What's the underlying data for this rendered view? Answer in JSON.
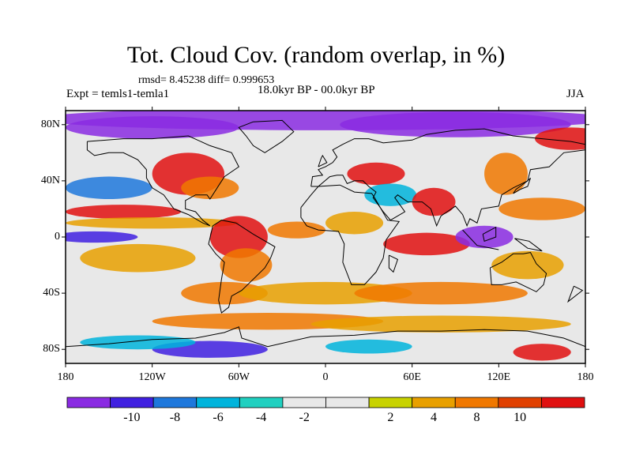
{
  "title": "Tot. Cloud Cov. (random overlap, in %)",
  "stats": "rmsd= 8.45238 diff= 0.999653",
  "experiment": "Expt = temls1-temla1",
  "period": "18.0kyr BP - 00.0kyr BP",
  "season": "JJA",
  "map": {
    "projection": "cylindrical equidistant",
    "lon_range": [
      -180,
      180
    ],
    "lat_range": [
      -90,
      90
    ],
    "lat_ticks": [
      {
        "label": "80N",
        "lat": 80
      },
      {
        "label": "40N",
        "lat": 40
      },
      {
        "label": "0",
        "lat": 0
      },
      {
        "label": "40S",
        "lat": -40
      },
      {
        "label": "80S",
        "lat": -80
      }
    ],
    "lon_ticks": [
      {
        "label": "180",
        "lon": -180
      },
      {
        "label": "120W",
        "lon": -120
      },
      {
        "label": "60W",
        "lon": -60
      },
      {
        "label": "0",
        "lon": 0
      },
      {
        "label": "60E",
        "lon": 60
      },
      {
        "label": "120E",
        "lon": 120
      },
      {
        "label": "180",
        "lon": 180
      }
    ],
    "field_notes": "total cloud cover difference, LGM minus present"
  },
  "colorbar": {
    "colors": [
      "#8a2be2",
      "#4020e0",
      "#1e78dc",
      "#00b4dc",
      "#20d0c0",
      "#e8e8e8",
      "#e8e8e8",
      "#c8d200",
      "#e8a000",
      "#f07800",
      "#e04000",
      "#e01010"
    ],
    "labels": [
      "-10",
      "-8",
      "-6",
      "-4",
      "-2",
      "2",
      "4",
      "8",
      "10"
    ]
  },
  "palette": {
    "neg_strong": "#8a2be2",
    "neg": "#4020e0",
    "neg_mid": "#1e78dc",
    "neg_weak": "#00b4dc",
    "neg_min": "#20d0c0",
    "neutral": "#e8e8e8",
    "pos_min": "#c8d200",
    "pos_weak": "#e8a000",
    "pos": "#f07800",
    "pos_strong": "#e01010"
  }
}
